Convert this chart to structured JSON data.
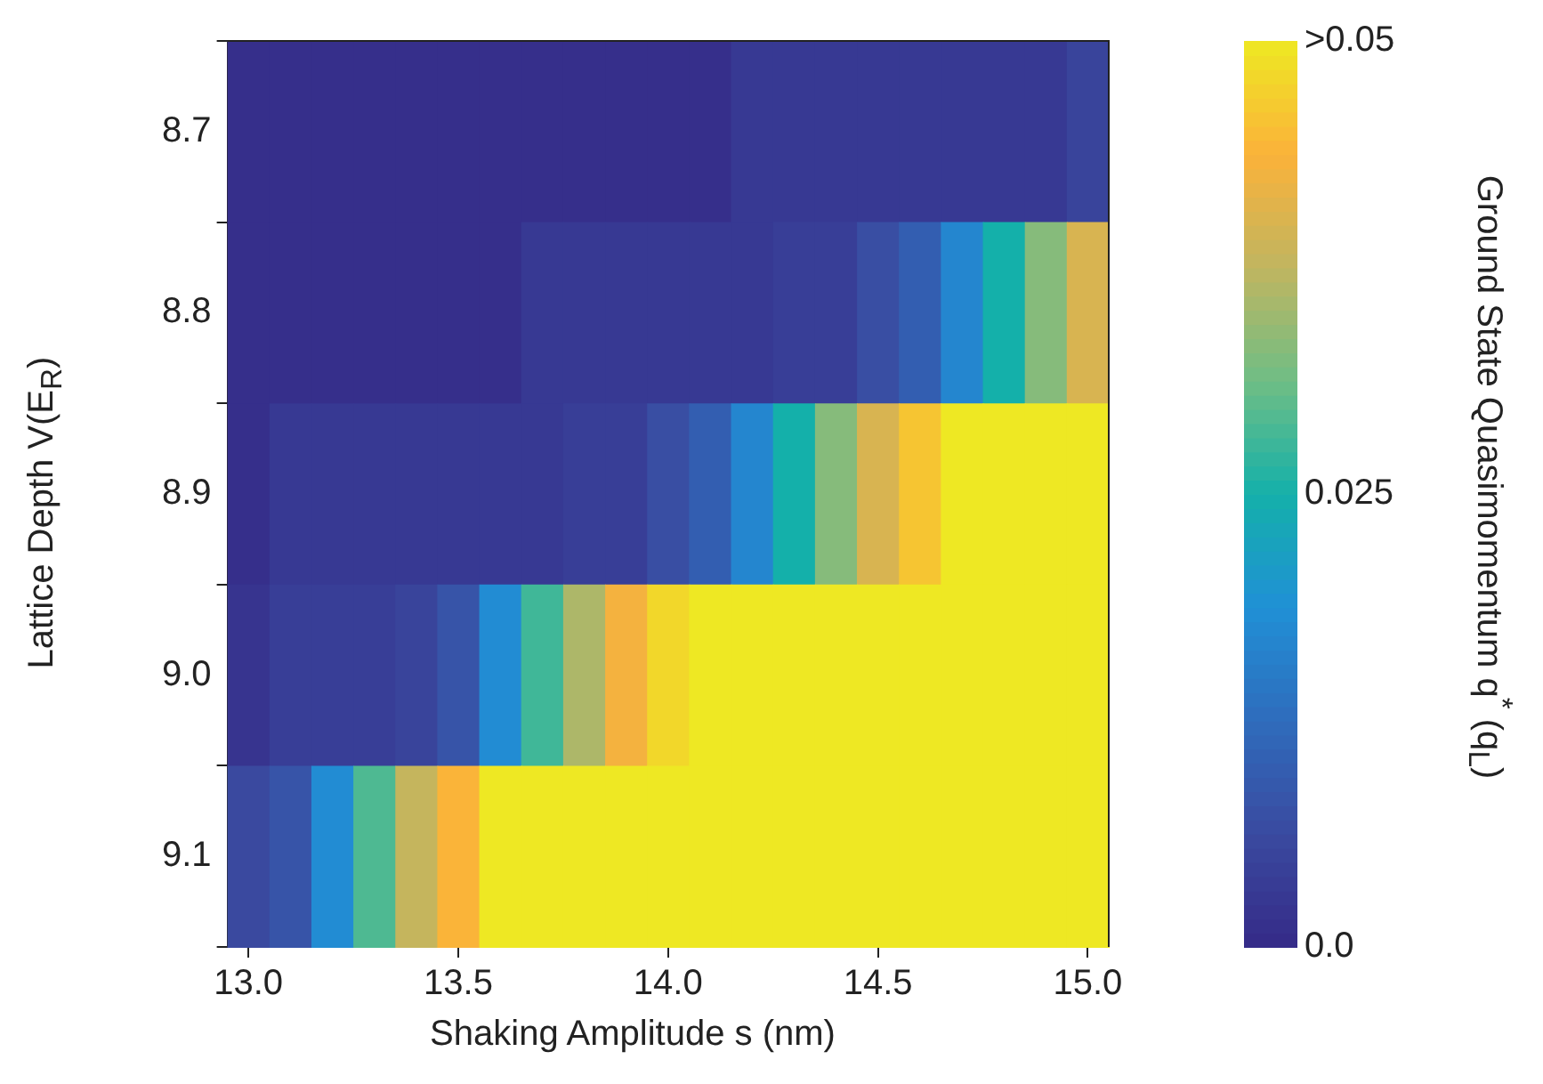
{
  "chart_data": {
    "type": "heatmap",
    "xlabel": "Shaking Amplitude s (nm)",
    "ylabel": "Lattice Depth V(E$_{R}$)",
    "clabel": "Ground State Quasimomentum q$^{*}$ (q$_{L}$)",
    "x": [
      13.0,
      13.1,
      13.2,
      13.3,
      13.4,
      13.5,
      13.6,
      13.7,
      13.8,
      13.9,
      14.0,
      14.1,
      14.2,
      14.3,
      14.4,
      14.5,
      14.6,
      14.7,
      14.8,
      14.9,
      15.0
    ],
    "xlim": [
      12.95,
      15.05
    ],
    "xticks": [
      {
        "value": 13.0,
        "label": "13.0"
      },
      {
        "value": 13.5,
        "label": "13.5"
      },
      {
        "value": 14.0,
        "label": "14.0"
      },
      {
        "value": 14.5,
        "label": "14.5"
      },
      {
        "value": 15.0,
        "label": "15.0"
      }
    ],
    "y_categories": [
      "8.7",
      "8.8",
      "8.9",
      "9.0",
      "9.1"
    ],
    "cells": [
      [
        0.001,
        0.001,
        0.001,
        0.001,
        0.001,
        0.001,
        0.001,
        0.001,
        0.001,
        0.001,
        0.001,
        0.001,
        0.003,
        0.003,
        0.003,
        0.003,
        0.003,
        0.003,
        0.003,
        0.003,
        0.005
      ],
      [
        0.001,
        0.001,
        0.001,
        0.001,
        0.001,
        0.001,
        0.001,
        0.003,
        0.003,
        0.003,
        0.003,
        0.003,
        0.003,
        0.004,
        0.004,
        0.007,
        0.01,
        0.017,
        0.025,
        0.033,
        0.04
      ],
      [
        0.001,
        0.003,
        0.003,
        0.003,
        0.003,
        0.003,
        0.003,
        0.003,
        0.004,
        0.004,
        0.007,
        0.01,
        0.017,
        0.025,
        0.033,
        0.04,
        0.046,
        0.05,
        0.05,
        0.05,
        0.05
      ],
      [
        0.002,
        0.004,
        0.004,
        0.004,
        0.005,
        0.008,
        0.018,
        0.028,
        0.036,
        0.043,
        0.048,
        0.05,
        0.05,
        0.05,
        0.05,
        0.05,
        0.05,
        0.05,
        0.05,
        0.05,
        0.05
      ],
      [
        0.006,
        0.008,
        0.018,
        0.029,
        0.038,
        0.044,
        0.05,
        0.05,
        0.05,
        0.05,
        0.05,
        0.05,
        0.05,
        0.05,
        0.05,
        0.05,
        0.05,
        0.05,
        0.05,
        0.05,
        0.05
      ]
    ],
    "clim": [
      0,
      0.05
    ],
    "cticks": [
      {
        "value": 0,
        "label": "0.0"
      },
      {
        "value": 0.025,
        "label": "0.025"
      },
      {
        "value": 0.05,
        "label": ">0.05"
      }
    ]
  }
}
